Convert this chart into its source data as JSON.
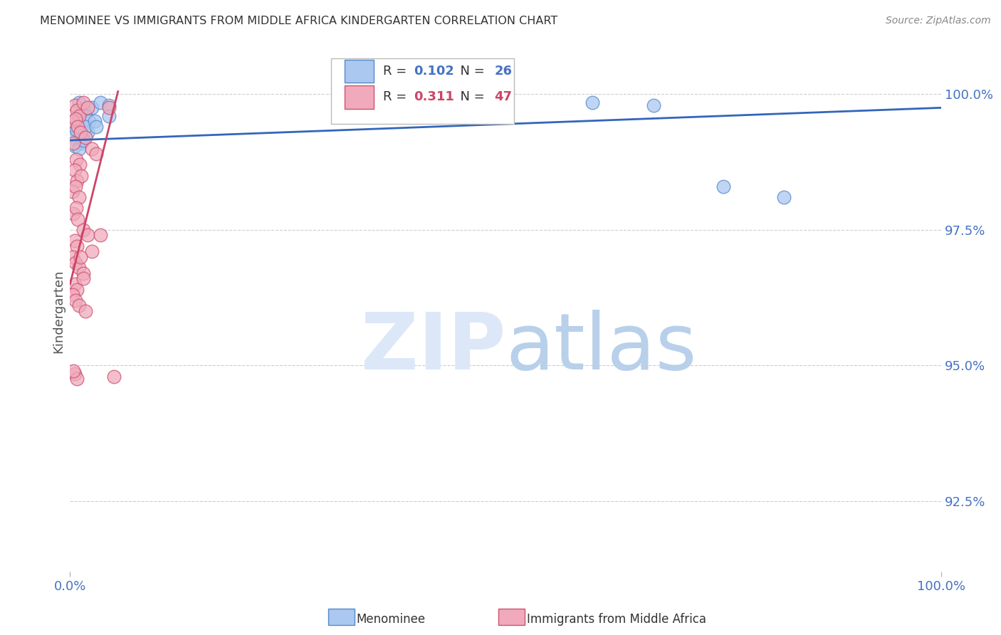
{
  "title": "MENOMINEE VS IMMIGRANTS FROM MIDDLE AFRICA KINDERGARTEN CORRELATION CHART",
  "source": "Source: ZipAtlas.com",
  "ylabel": "Kindergarten",
  "ytick_labels": [
    "92.5%",
    "95.0%",
    "97.5%",
    "100.0%"
  ],
  "ytick_values": [
    92.5,
    95.0,
    97.5,
    100.0
  ],
  "ylim": [
    91.2,
    100.8
  ],
  "xlim": [
    0.0,
    100.0
  ],
  "legend_blue_r": "0.102",
  "legend_blue_n": "26",
  "legend_pink_r": "0.311",
  "legend_pink_n": "47",
  "blue_scatter_color": "#aac8f0",
  "blue_edge_color": "#5588cc",
  "pink_scatter_color": "#f0aabb",
  "pink_edge_color": "#d05070",
  "blue_line_color": "#3366bb",
  "pink_line_color": "#cc4466",
  "title_color": "#333333",
  "source_color": "#888888",
  "axis_tick_color": "#4472c4",
  "grid_color": "#cccccc",
  "legend_text_color": "#333333",
  "legend_value_color": "#4472c4",
  "legend_pink_value_color": "#cc4466",
  "blue_scatter_x": [
    1.0,
    1.5,
    2.5,
    3.5,
    4.5,
    0.5,
    1.0,
    1.8,
    2.2,
    0.8,
    1.2,
    2.0,
    0.3,
    0.7,
    1.3,
    1.8,
    0.5,
    1.0,
    1.5,
    2.8,
    3.0,
    60.0,
    67.0,
    75.0,
    82.0,
    4.5
  ],
  "blue_scatter_y": [
    99.85,
    99.7,
    99.75,
    99.85,
    99.8,
    99.5,
    99.45,
    99.6,
    99.5,
    99.3,
    99.2,
    99.3,
    99.2,
    99.35,
    99.1,
    99.4,
    99.05,
    99.0,
    99.15,
    99.5,
    99.4,
    99.85,
    99.8,
    98.3,
    98.1,
    99.6
  ],
  "pink_scatter_x": [
    0.5,
    0.8,
    1.0,
    1.5,
    2.0,
    0.3,
    0.6,
    0.9,
    1.2,
    1.8,
    2.5,
    3.0,
    0.4,
    0.7,
    1.1,
    0.5,
    0.8,
    1.3,
    0.3,
    0.6,
    1.0,
    0.4,
    0.7,
    0.9,
    1.5,
    2.0,
    0.5,
    0.8,
    0.3,
    0.6,
    1.0,
    1.5,
    2.5,
    0.5,
    0.8,
    1.2,
    0.3,
    0.6,
    1.0,
    1.8,
    0.5,
    0.8,
    3.5,
    0.4,
    5.0,
    1.5,
    4.5
  ],
  "pink_scatter_y": [
    99.8,
    99.7,
    99.6,
    99.85,
    99.75,
    99.5,
    99.55,
    99.4,
    99.3,
    99.2,
    99.0,
    98.9,
    99.1,
    98.8,
    98.7,
    98.6,
    98.4,
    98.5,
    98.2,
    98.3,
    98.1,
    97.8,
    97.9,
    97.7,
    97.5,
    97.4,
    97.3,
    97.2,
    97.0,
    96.9,
    96.8,
    96.7,
    97.1,
    96.5,
    96.4,
    97.0,
    96.3,
    96.2,
    96.1,
    96.0,
    94.85,
    94.75,
    97.4,
    94.9,
    94.8,
    96.6,
    99.75
  ],
  "blue_trend_x": [
    0.0,
    100.0
  ],
  "blue_trend_y": [
    99.15,
    99.75
  ],
  "pink_trend_x": [
    0.0,
    5.5
  ],
  "pink_trend_y": [
    96.5,
    100.05
  ],
  "bottom_legend_blue_label": "Menominee",
  "bottom_legend_pink_label": "Immigrants from Middle Africa"
}
